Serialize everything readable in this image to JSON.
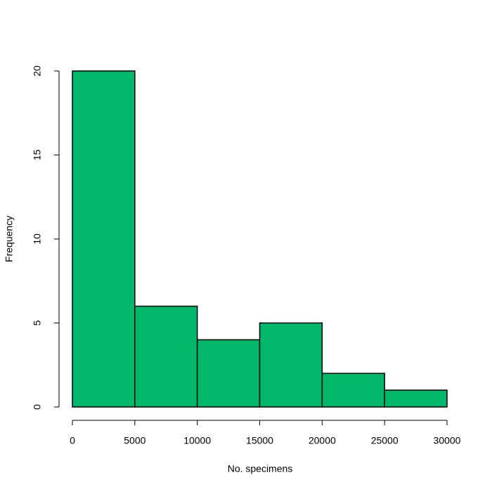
{
  "chart_data": {
    "type": "histogram",
    "xlabel": "No. specimens",
    "ylabel": "Frequency",
    "bins": [
      0,
      5000,
      10000,
      15000,
      20000,
      25000,
      30000
    ],
    "values": [
      20,
      6,
      4,
      5,
      2,
      1
    ],
    "color": "#00b76c",
    "xlim": [
      0,
      30000
    ],
    "xticks": [
      0,
      5000,
      10000,
      15000,
      20000,
      25000,
      30000
    ],
    "ylim": [
      0,
      20
    ],
    "yticks": [
      0,
      5,
      10,
      15,
      20
    ]
  }
}
